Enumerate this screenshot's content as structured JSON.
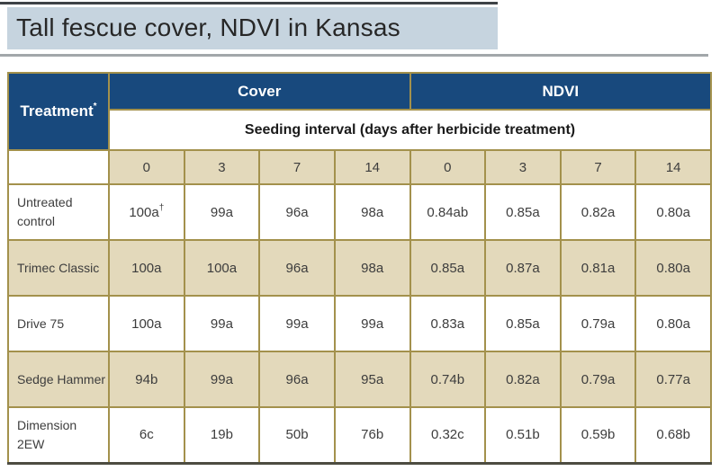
{
  "header": {
    "title": "Tall fescue cover, NDVI in Kansas"
  },
  "colors": {
    "header_blue": "#18497d",
    "gold_border": "#a3914c",
    "tan_fill": "#e3d9bb",
    "title_bar_bg": "#c6d4df",
    "bottom_rule_dark": "#4d4c41"
  },
  "table": {
    "treatment_header": "Treatment",
    "treatment_header_note": "*",
    "group_headers": [
      "Cover",
      "NDVI"
    ],
    "interval_header": "Seeding interval (days after herbicide treatment)",
    "interval_days": [
      "0",
      "3",
      "7",
      "14",
      "0",
      "3",
      "7",
      "14"
    ],
    "footnote_dagger": "†",
    "rows": [
      {
        "treatment": "Untreated control",
        "values": [
          "100a",
          "99a",
          "96a",
          "98a",
          "0.84ab",
          "0.85a",
          "0.82a",
          "0.80a"
        ]
      },
      {
        "treatment": "Trimec Classic",
        "values": [
          "100a",
          "100a",
          "96a",
          "98a",
          "0.85a",
          "0.87a",
          "0.81a",
          "0.80a"
        ]
      },
      {
        "treatment": "Drive 75",
        "values": [
          "100a",
          "99a",
          "99a",
          "99a",
          "0.83a",
          "0.85a",
          "0.79a",
          "0.80a"
        ]
      },
      {
        "treatment": "Sedge Hammer",
        "values": [
          "94b",
          "99a",
          "96a",
          "95a",
          "0.74b",
          "0.82a",
          "0.79a",
          "0.77a"
        ]
      },
      {
        "treatment": "Dimension 2EW",
        "values": [
          "6c",
          "19b",
          "50b",
          "76b",
          "0.32c",
          "0.51b",
          "0.59b",
          "0.68b"
        ]
      }
    ]
  },
  "chart_data": {
    "type": "table",
    "title": "Tall fescue cover, NDVI in Kansas",
    "column_groups": [
      "Cover",
      "NDVI"
    ],
    "subheader": "Seeding interval (days after herbicide treatment)",
    "columns": [
      "Treatment",
      "Cover 0",
      "Cover 3",
      "Cover 7",
      "Cover 14",
      "NDVI 0",
      "NDVI 3",
      "NDVI 7",
      "NDVI 14"
    ],
    "rows": [
      [
        "Untreated control",
        "100a†",
        "99a",
        "96a",
        "98a",
        "0.84ab",
        "0.85a",
        "0.82a",
        "0.80a"
      ],
      [
        "Trimec Classic",
        "100a",
        "100a",
        "96a",
        "98a",
        "0.85a",
        "0.87a",
        "0.81a",
        "0.80a"
      ],
      [
        "Drive 75",
        "100a",
        "99a",
        "99a",
        "99a",
        "0.83a",
        "0.85a",
        "0.79a",
        "0.80a"
      ],
      [
        "Sedge Hammer",
        "94b",
        "99a",
        "96a",
        "95a",
        "0.74b",
        "0.82a",
        "0.79a",
        "0.77a"
      ],
      [
        "Dimension 2EW",
        "6c",
        "19b",
        "50b",
        "76b",
        "0.32c",
        "0.51b",
        "0.59b",
        "0.68b"
      ]
    ]
  }
}
